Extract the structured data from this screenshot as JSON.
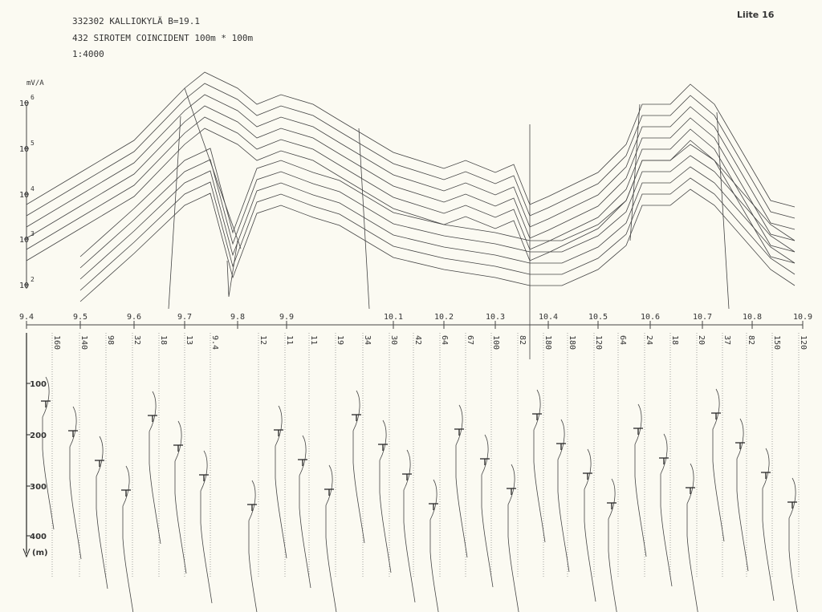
{
  "header": {
    "title": "332302  KALLIOKYLÄ  B=19.1",
    "subtitle": "432   SIROTEM COINCIDENT  100m * 100m",
    "scale": "1:4000",
    "appendix": "Liite 16"
  },
  "upper_axis": {
    "unit": "mV/A",
    "ticks": [
      {
        "base": "10",
        "exp": "6"
      },
      {
        "base": "10",
        "exp": "5"
      },
      {
        "base": "10",
        "exp": "4"
      },
      {
        "base": "10",
        "exp": "3"
      },
      {
        "base": "10",
        "exp": "2"
      }
    ]
  },
  "stations": [
    "9.4",
    "9.5",
    "9.6",
    "9.7",
    "9.8",
    "9.9",
    "10.1",
    "10.2",
    "10.3",
    "10.4",
    "10.5",
    "10.6",
    "10.7",
    "10.8",
    "10.9"
  ],
  "resistivities": [
    "160",
    "140",
    "98",
    "32",
    "18",
    "13",
    "9.4",
    "12",
    "11",
    "11",
    "19",
    "34",
    "30",
    "42",
    "64",
    "67",
    "100",
    "82",
    "180",
    "180",
    "120",
    "64",
    "24",
    "18",
    "20",
    "37",
    "82",
    "150",
    "120"
  ],
  "depth_axis": {
    "ticks": [
      "100",
      "200",
      "300",
      "400"
    ],
    "unit": "(m)"
  }
}
